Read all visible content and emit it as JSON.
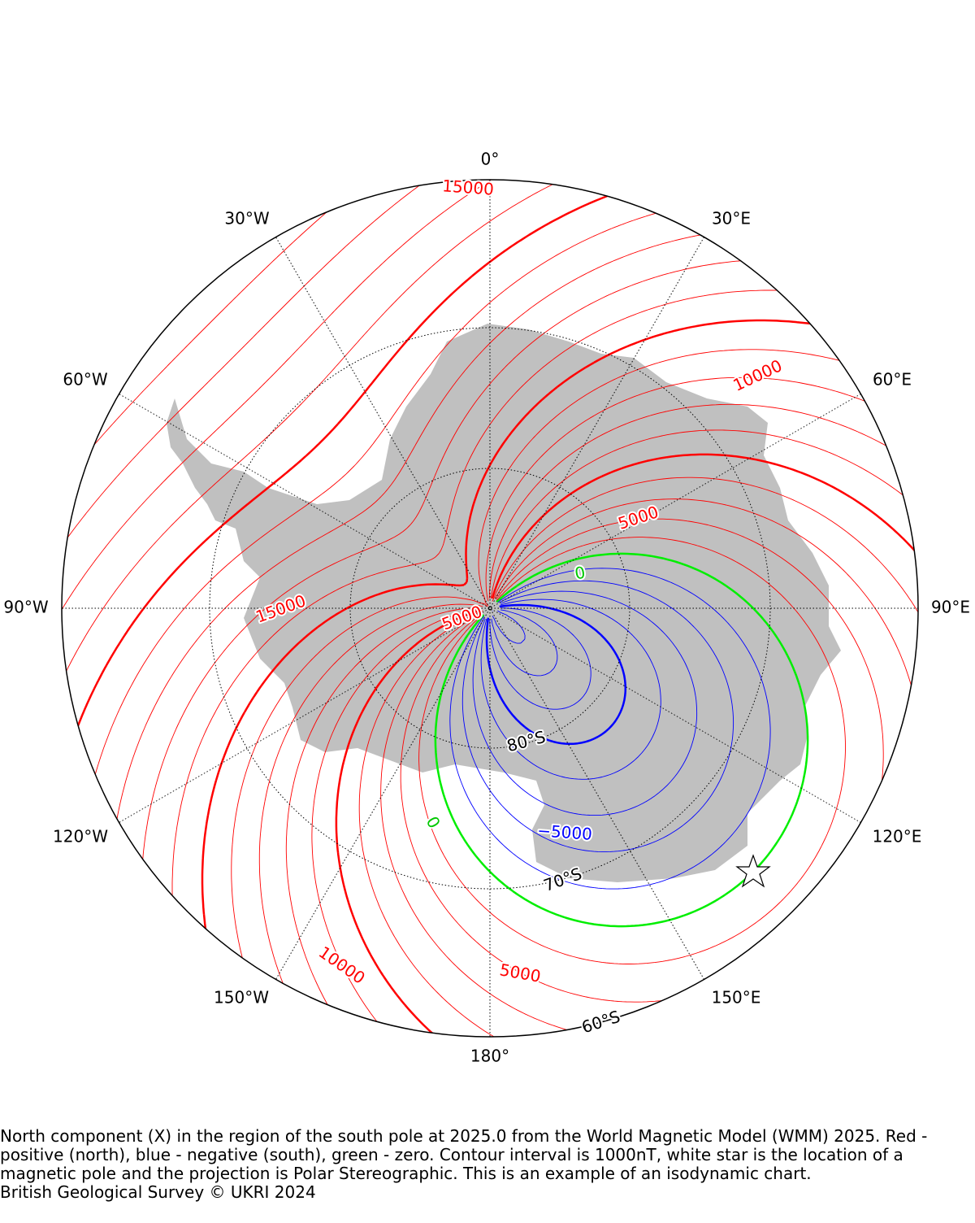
{
  "map": {
    "longitude_labels": [
      "0°",
      "30°E",
      "60°E",
      "90°E",
      "120°E",
      "150°E",
      "180°",
      "150°W",
      "120°W",
      "90°W",
      "60°W",
      "30°W"
    ],
    "latitude_labels": [
      "80°S",
      "70°S",
      "60°S"
    ],
    "contour_labels": [
      "15000",
      "10000",
      "5000",
      "0",
      "5000",
      "15000",
      "0",
      "−5000",
      "10000",
      "5000"
    ],
    "caption": [
      "North component (X) in the region of the south pole at 2025.0 from the World Magnetic Model (WMM) 2025. Red -",
      "positive (north), blue - negative (south), green - zero. Contour interval is 1000nT, white star is the location of a",
      "magnetic pole and the projection is Polar Stereographic. This is an example of an isodynamic chart.",
      "British Geological Survey © UKRI 2024"
    ]
  }
}
